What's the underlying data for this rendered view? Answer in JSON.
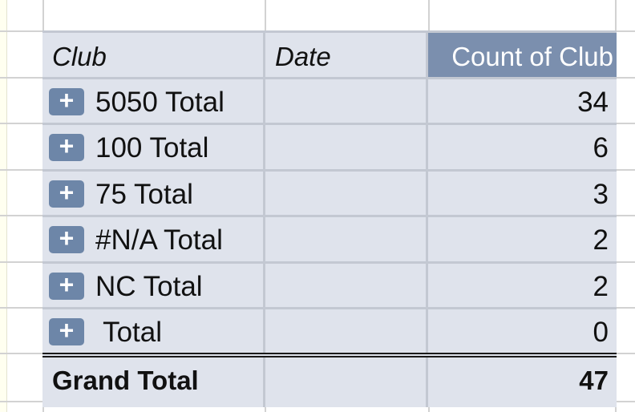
{
  "pivot": {
    "headers": {
      "club": "Club",
      "date": "Date",
      "count": "Count of Club"
    },
    "rows": [
      {
        "label": "5050 Total",
        "count": "34",
        "expand_icon": "plus-icon"
      },
      {
        "label": "100 Total",
        "count": "6",
        "expand_icon": "plus-icon"
      },
      {
        "label": "75 Total",
        "count": "3",
        "expand_icon": "plus-icon"
      },
      {
        "label": "#N/A Total",
        "count": "2",
        "expand_icon": "plus-icon"
      },
      {
        "label": "NC Total",
        "count": "2",
        "expand_icon": "plus-icon"
      },
      {
        "label": " Total",
        "count": "0",
        "expand_icon": "plus-icon"
      }
    ],
    "grand_total": {
      "label": "Grand Total",
      "count": "47"
    },
    "plus_symbol": "+"
  },
  "colors": {
    "cell_fill": "#dfe3ec",
    "header_active_fill": "#7b8fae",
    "expand_button": "#6d86a8",
    "gridline": "#d2d2d2"
  }
}
